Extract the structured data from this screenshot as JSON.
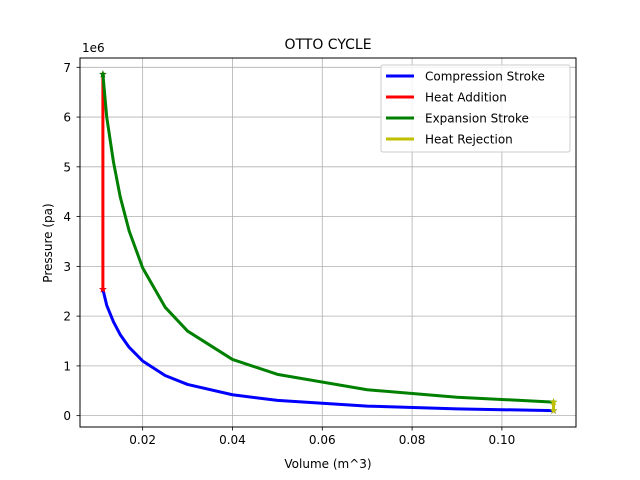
{
  "chart_data": {
    "type": "line",
    "title": "OTTO CYCLE",
    "xlabel": "Volume (m^3)",
    "ylabel": "Pressure (pa)",
    "y_offset_label": "1e6",
    "xlim": [
      0.00605,
      0.1165
    ],
    "ylim": [
      -0.228,
      7.187
    ],
    "x_ticks": [
      0.02,
      0.04,
      0.06,
      0.08,
      0.1
    ],
    "x_tick_labels": [
      "0.02",
      "0.04",
      "0.06",
      "0.08",
      "0.10"
    ],
    "y_ticks": [
      0,
      1,
      2,
      3,
      4,
      5,
      6,
      7
    ],
    "y_tick_labels": [
      "0",
      "1",
      "2",
      "3",
      "4",
      "5",
      "6",
      "7"
    ],
    "grid": true,
    "legend_position": "top-right",
    "series": [
      {
        "name": "Compression Stroke",
        "color": "#0000ff",
        "marker_end": "*",
        "x": [
          0.1115,
          0.09,
          0.07,
          0.05,
          0.04,
          0.03,
          0.025,
          0.02,
          0.017,
          0.015,
          0.0135,
          0.012,
          0.01115
        ],
        "y": [
          0.101,
          0.136,
          0.192,
          0.307,
          0.42,
          0.627,
          0.807,
          1.099,
          1.373,
          1.629,
          1.885,
          2.218,
          2.538
        ]
      },
      {
        "name": "Heat Addition",
        "color": "#ff0000",
        "marker_end": "*",
        "x": [
          0.01115,
          0.01115
        ],
        "y": [
          2.538,
          6.86
        ]
      },
      {
        "name": "Expansion Stroke",
        "color": "#008000",
        "marker_end": "*",
        "x": [
          0.01115,
          0.012,
          0.0135,
          0.015,
          0.017,
          0.02,
          0.025,
          0.03,
          0.04,
          0.05,
          0.07,
          0.09,
          0.1115
        ],
        "y": [
          6.86,
          6.0,
          5.1,
          4.4,
          3.71,
          2.97,
          2.18,
          1.7,
          1.13,
          0.83,
          0.52,
          0.37,
          0.273
        ]
      },
      {
        "name": "Heat Rejection",
        "color": "#bfbf00",
        "marker_end": "*",
        "x": [
          0.1115,
          0.1115
        ],
        "y": [
          0.273,
          0.101
        ]
      }
    ]
  }
}
